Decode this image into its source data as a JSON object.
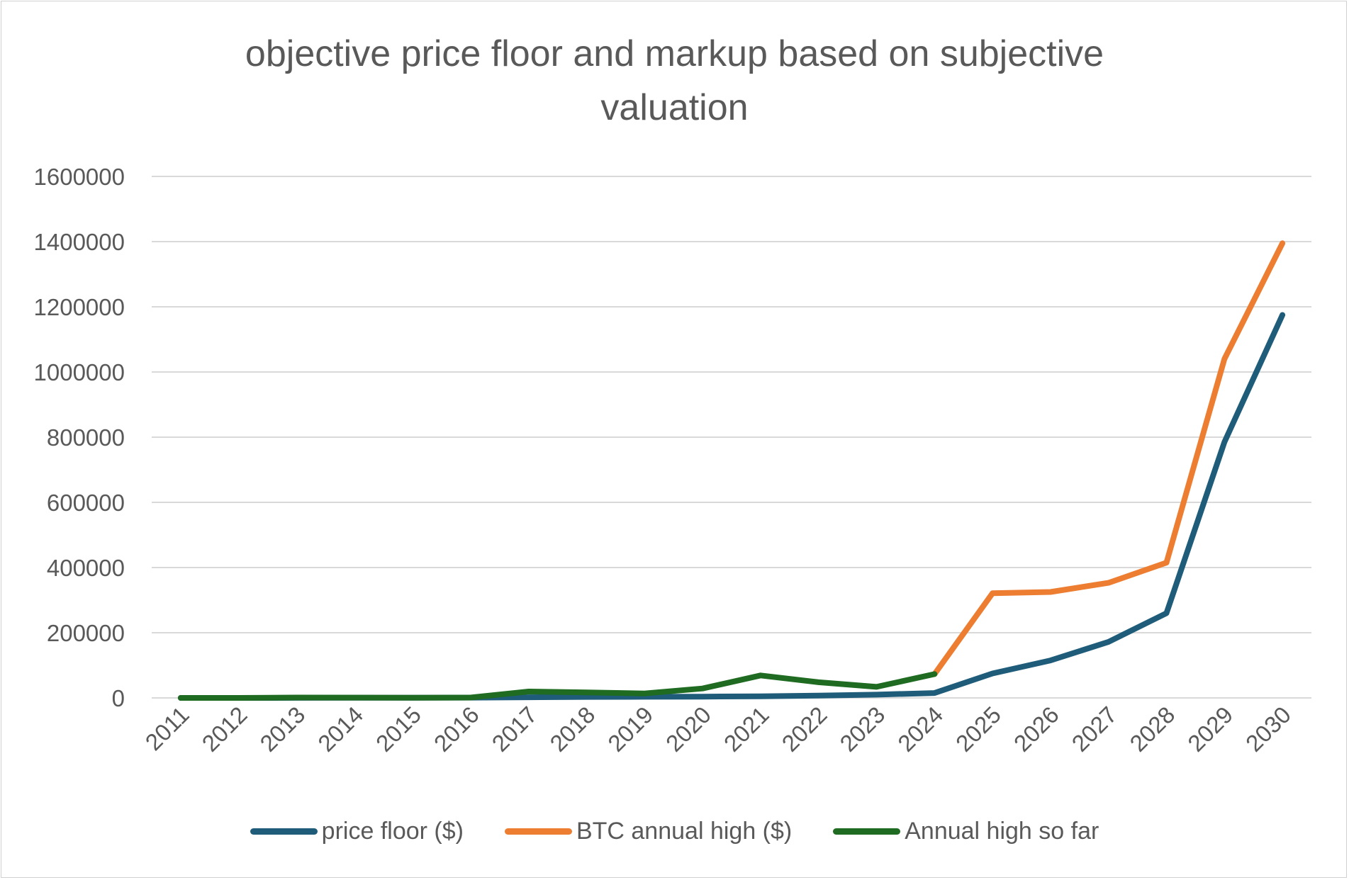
{
  "chart_data": {
    "type": "line",
    "title": "objective price floor and markup based on subjective valuation",
    "title_lines": [
      "objective price floor and markup based on subjective",
      "valuation"
    ],
    "xlabel": "",
    "ylabel": "",
    "categories": [
      "2011",
      "2012",
      "2013",
      "2014",
      "2015",
      "2016",
      "2017",
      "2018",
      "2019",
      "2020",
      "2021",
      "2022",
      "2023",
      "2024",
      "2025",
      "2026",
      "2027",
      "2028",
      "2029",
      "2030"
    ],
    "y_ticks": [
      0,
      200000,
      400000,
      600000,
      800000,
      1000000,
      1200000,
      1400000,
      1600000
    ],
    "ylim": [
      0,
      1600000
    ],
    "grid": true,
    "legend_position": "bottom",
    "series": [
      {
        "name": "price floor ($)",
        "color": "#1f5c7a",
        "values": [
          30,
          60,
          200,
          500,
          400,
          800,
          2000,
          3000,
          3500,
          4000,
          5000,
          7000,
          10000,
          15000,
          75000,
          115000,
          172000,
          260000,
          785000,
          1175000
        ]
      },
      {
        "name": "BTC annual high ($)",
        "color": "#ed7d31",
        "values": [
          null,
          null,
          null,
          null,
          null,
          null,
          null,
          null,
          null,
          null,
          null,
          null,
          null,
          73000,
          321000,
          325000,
          353000,
          415000,
          1040000,
          1395000
        ]
      },
      {
        "name": "Annual high so far",
        "color": "#1e6b21",
        "values": [
          30,
          30,
          1100,
          950,
          450,
          1000,
          19500,
          17000,
          13800,
          29000,
          69000,
          48000,
          34000,
          73000,
          null,
          null,
          null,
          null,
          null,
          null
        ]
      }
    ]
  }
}
